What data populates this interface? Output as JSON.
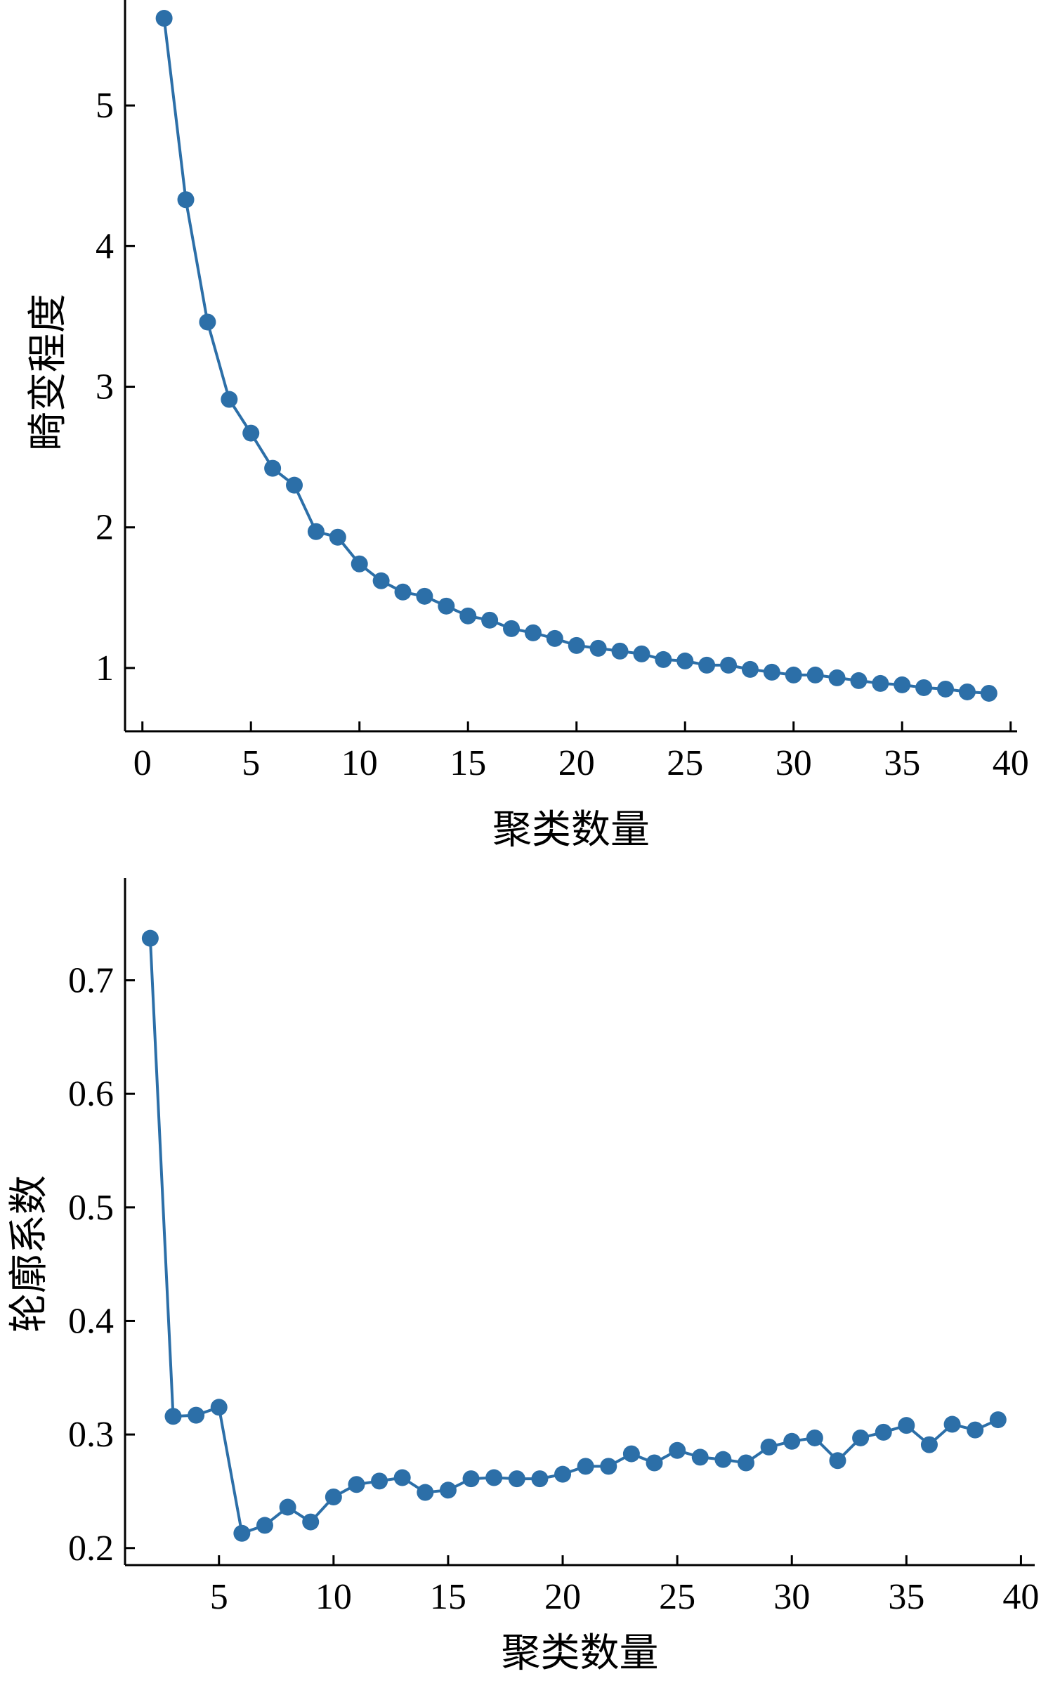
{
  "chart_data": [
    {
      "type": "line",
      "title": "",
      "xlabel": "聚类数量",
      "ylabel": "畸变程度",
      "xlim": [
        -0.8,
        40.3
      ],
      "ylim": [
        0.55,
        5.75
      ],
      "xticks": [
        0,
        5,
        10,
        15,
        20,
        25,
        30,
        35,
        40
      ],
      "yticks": [
        1,
        2,
        3,
        4,
        5
      ],
      "grid": false,
      "color": "#2c6fa8",
      "x": [
        1,
        2,
        3,
        4,
        5,
        6,
        7,
        8,
        9,
        10,
        11,
        12,
        13,
        14,
        15,
        16,
        17,
        18,
        19,
        20,
        21,
        22,
        23,
        24,
        25,
        26,
        27,
        28,
        29,
        30,
        31,
        32,
        33,
        34,
        35,
        36,
        37,
        38,
        39
      ],
      "values": [
        5.62,
        4.33,
        3.46,
        2.91,
        2.67,
        2.42,
        2.3,
        1.97,
        1.93,
        1.74,
        1.62,
        1.54,
        1.51,
        1.44,
        1.37,
        1.34,
        1.28,
        1.25,
        1.21,
        1.16,
        1.14,
        1.12,
        1.1,
        1.06,
        1.05,
        1.02,
        1.02,
        0.99,
        0.97,
        0.95,
        0.95,
        0.93,
        0.91,
        0.89,
        0.88,
        0.86,
        0.85,
        0.83,
        0.82
      ]
    },
    {
      "type": "line",
      "title": "",
      "xlabel": "聚类数量",
      "ylabel": "轮廓系数",
      "xlim": [
        0.9,
        40.6
      ],
      "ylim": [
        0.185,
        0.79
      ],
      "xticks": [
        5,
        10,
        15,
        20,
        25,
        30,
        35,
        40
      ],
      "yticks": [
        0.2,
        0.3,
        0.4,
        0.5,
        0.6,
        0.7
      ],
      "grid": false,
      "color": "#2c6fa8",
      "x": [
        2,
        3,
        4,
        5,
        6,
        7,
        8,
        9,
        10,
        11,
        12,
        13,
        14,
        15,
        16,
        17,
        18,
        19,
        20,
        21,
        22,
        23,
        24,
        25,
        26,
        27,
        28,
        29,
        30,
        31,
        32,
        33,
        34,
        35,
        36,
        37,
        38,
        39
      ],
      "values": [
        0.737,
        0.316,
        0.317,
        0.324,
        0.213,
        0.22,
        0.236,
        0.223,
        0.245,
        0.256,
        0.259,
        0.262,
        0.249,
        0.251,
        0.261,
        0.262,
        0.261,
        0.261,
        0.265,
        0.272,
        0.272,
        0.283,
        0.275,
        0.286,
        0.28,
        0.278,
        0.275,
        0.289,
        0.294,
        0.297,
        0.277,
        0.297,
        0.302,
        0.308,
        0.291,
        0.309,
        0.304,
        0.313
      ]
    }
  ]
}
